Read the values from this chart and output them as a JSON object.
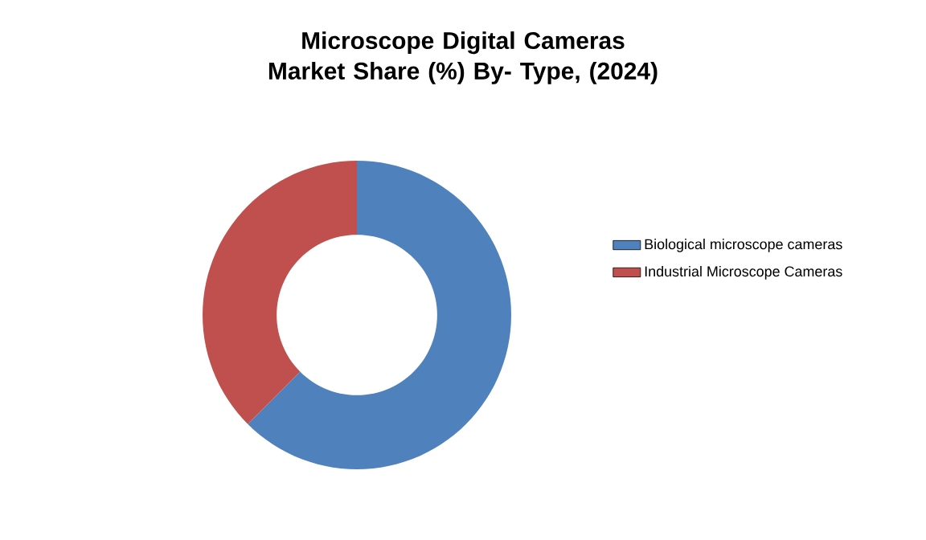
{
  "chart_data": {
    "type": "donut",
    "title": "Microscope Digital Cameras Market Share (%) By- Type, (2024)",
    "categories": [
      "Biological microscope cameras",
      "Industrial Microscope Cameras"
    ],
    "values": [
      62.5,
      37.5
    ],
    "colors": [
      "#4f81bd",
      "#c0504d"
    ],
    "legend": "right"
  }
}
